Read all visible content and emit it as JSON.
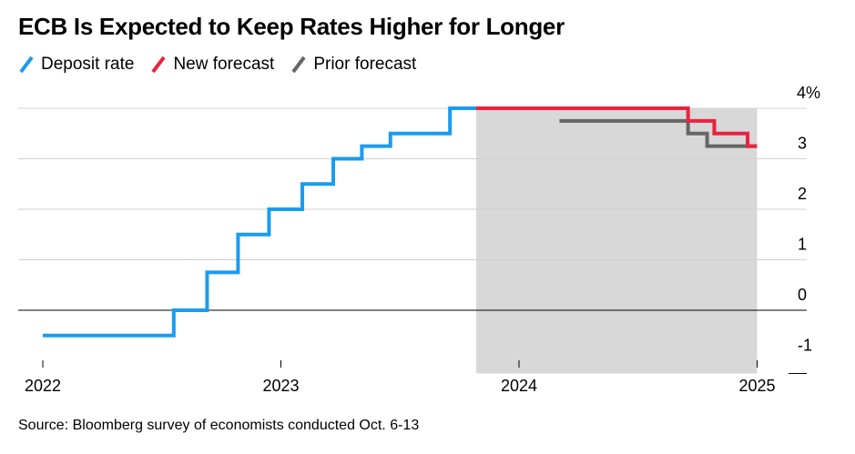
{
  "title": "ECB Is Expected to Keep Rates Higher for Longer",
  "source": "Source: Bloomberg survey of economists conducted Oct. 6-13",
  "legend": [
    {
      "label": "Deposit rate",
      "color": "#1a9cf0"
    },
    {
      "label": "New forecast",
      "color": "#e8243f"
    },
    {
      "label": "Prior forecast",
      "color": "#666666"
    }
  ],
  "chart_data": {
    "type": "line",
    "xlim": [
      2022,
      2025.15
    ],
    "ylim": [
      -1,
      4
    ],
    "x_ticks": [
      "2022",
      "2023",
      "2024",
      "2025"
    ],
    "y_ticks": [
      "-1",
      "0",
      "1",
      "2",
      "3",
      "4%"
    ],
    "forecast_shading": [
      2023.82,
      2025.0
    ],
    "grid": true,
    "legend_position": "top-left",
    "series": [
      {
        "name": "Deposit rate",
        "color": "#1a9cf0",
        "step": true,
        "x": [
          2022.0,
          2022.55,
          2022.69,
          2022.82,
          2022.95,
          2023.09,
          2023.22,
          2023.34,
          2023.46,
          2023.71,
          2023.82
        ],
        "y": [
          -0.5,
          0.0,
          0.75,
          1.5,
          2.0,
          2.5,
          3.0,
          3.25,
          3.5,
          4.0,
          4.0
        ]
      },
      {
        "name": "New forecast",
        "color": "#e8243f",
        "step": true,
        "x": [
          2023.82,
          2024.71,
          2024.82,
          2024.96,
          2025.0
        ],
        "y": [
          4.0,
          3.75,
          3.5,
          3.25,
          3.25
        ]
      },
      {
        "name": "Prior forecast",
        "color": "#666666",
        "step": true,
        "x": [
          2024.17,
          2024.71,
          2024.79,
          2025.0
        ],
        "y": [
          3.75,
          3.5,
          3.25,
          3.25
        ]
      }
    ]
  }
}
